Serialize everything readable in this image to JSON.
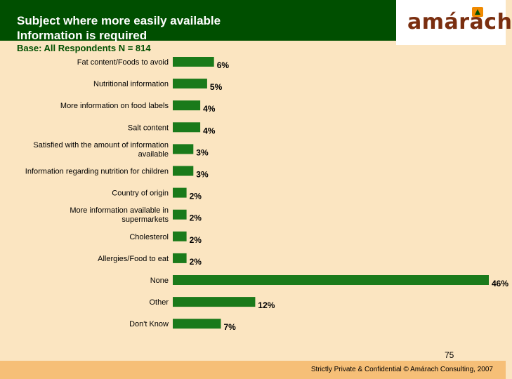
{
  "header": {
    "title_line1": "Subject where more easily available",
    "title_line2": "Information is required",
    "subtitle": "Base: All Respondents N = 814",
    "logo_text": "amárach"
  },
  "chart_data": {
    "type": "bar",
    "orientation": "horizontal",
    "categories": [
      [
        "Fat content/Foods to avoid"
      ],
      [
        "Nutritional information"
      ],
      [
        "More information on food labels"
      ],
      [
        "Salt content"
      ],
      [
        "Satisfied with the amount of information",
        "available"
      ],
      [
        "Information regarding nutrition for children"
      ],
      [
        "Country of origin"
      ],
      [
        "More information available in",
        "supermarkets"
      ],
      [
        "Cholesterol"
      ],
      [
        "Allergies/Food to eat"
      ],
      [
        "None"
      ],
      [
        "Other"
      ],
      [
        "Don't Know"
      ]
    ],
    "values": [
      6,
      5,
      4,
      4,
      3,
      3,
      2,
      2,
      2,
      2,
      46,
      12,
      7
    ],
    "value_labels": [
      "6%",
      "5%",
      "4%",
      "4%",
      "3%",
      "3%",
      "2%",
      "2%",
      "2%",
      "2%",
      "46%",
      "12%",
      "7%"
    ],
    "unit": "%",
    "xlim": [
      0,
      46
    ],
    "bar_color": "#1a7a1a",
    "grid": false,
    "legend": "none"
  },
  "footer": {
    "page_number": "75",
    "text": "Strictly Private & Confidential © Amárach Consulting, 2007"
  },
  "colors": {
    "background": "#fbe5c1",
    "header": "#004f00",
    "footer": "#f6bf77",
    "logo": "#7a2e0f"
  }
}
